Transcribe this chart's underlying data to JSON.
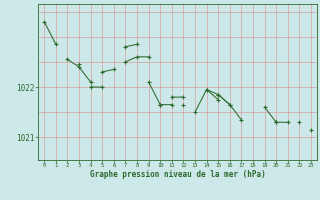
{
  "bg_color": "#cde8e8",
  "line_color": "#2d6a2d",
  "grid_color": "#d8a0a0",
  "xlabel_text": "Graphe pression niveau de la mer (hPa)",
  "x_ticks": [
    0,
    1,
    2,
    3,
    4,
    5,
    6,
    7,
    8,
    9,
    10,
    11,
    12,
    13,
    14,
    15,
    16,
    17,
    18,
    19,
    20,
    21,
    22,
    23
  ],
  "series": [
    [
      1023.3,
      1022.85,
      null,
      null,
      1022.0,
      1022.0,
      null,
      1022.5,
      1022.6,
      1022.6,
      null,
      1021.8,
      1021.8,
      null,
      null,
      1021.85,
      1021.65,
      null,
      null,
      null,
      1021.3,
      1021.3,
      null,
      1021.15
    ],
    [
      null,
      null,
      1022.55,
      1022.4,
      1022.1,
      null,
      null,
      1022.8,
      1022.85,
      null,
      1021.65,
      null,
      1021.65,
      null,
      1021.95,
      1021.75,
      null,
      null,
      null,
      null,
      null,
      null,
      null,
      null
    ],
    [
      null,
      null,
      null,
      1022.45,
      null,
      1022.3,
      1022.35,
      null,
      null,
      1022.1,
      1021.65,
      1021.65,
      null,
      null,
      null,
      null,
      null,
      null,
      null,
      null,
      null,
      null,
      null,
      null
    ],
    [
      null,
      null,
      null,
      null,
      null,
      null,
      null,
      null,
      null,
      null,
      1021.65,
      null,
      null,
      1021.5,
      1021.95,
      1021.85,
      1021.65,
      1021.35,
      null,
      1021.6,
      1021.3,
      null,
      1021.3,
      null
    ]
  ],
  "ylim": [
    1020.55,
    1023.65
  ],
  "yticks": [
    1021.0,
    1022.0
  ],
  "figsize": [
    3.2,
    2.0
  ],
  "dpi": 100
}
